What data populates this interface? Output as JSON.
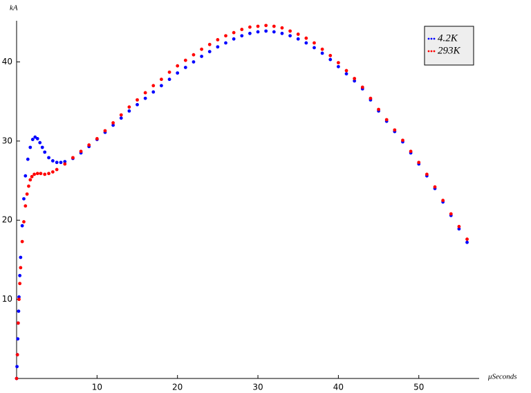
{
  "chart_data": {
    "type": "scatter",
    "y_label": "kA",
    "x_label": "μSeconds",
    "xlim": [
      0,
      57.5
    ],
    "ylim": [
      0,
      45.2
    ],
    "xticks": [
      10,
      20,
      30,
      40,
      50
    ],
    "yticks": [
      10,
      20,
      30,
      40
    ],
    "grid": false,
    "legend": "upper right",
    "series": [
      {
        "name": "4.2K",
        "color": "#0000ff",
        "x": [
          0,
          0.05,
          0.1,
          0.15,
          0.2,
          0.25,
          0.3,
          0.4,
          0.5,
          0.7,
          0.9,
          1.1,
          1.4,
          1.7,
          2.0,
          2.3,
          2.6,
          2.9,
          3.2,
          3.5,
          4,
          4.5,
          5,
          5.5,
          6,
          7,
          8,
          9,
          10,
          11,
          12,
          13,
          14,
          15,
          16,
          17,
          18,
          19,
          20,
          21,
          22,
          23,
          24,
          25,
          26,
          27,
          28,
          29,
          30,
          31,
          32,
          33,
          34,
          35,
          36,
          37,
          38,
          39,
          40,
          41,
          42,
          43,
          44,
          45,
          46,
          47,
          48,
          49,
          50,
          51,
          52,
          53,
          54,
          55,
          56
        ],
        "values": [
          0,
          1.5,
          3,
          5,
          7,
          8.5,
          10.3,
          13,
          15.3,
          19.3,
          22.7,
          25.6,
          27.7,
          29.2,
          30.2,
          30.5,
          30.3,
          29.8,
          29.2,
          28.6,
          27.9,
          27.5,
          27.3,
          27.3,
          27.4,
          27.8,
          28.5,
          29.3,
          30.2,
          31.1,
          32.0,
          32.9,
          33.8,
          34.6,
          35.4,
          36.2,
          37.0,
          37.8,
          38.6,
          39.3,
          40.0,
          40.7,
          41.3,
          41.9,
          42.4,
          42.9,
          43.3,
          43.6,
          43.8,
          43.9,
          43.8,
          43.6,
          43.3,
          42.9,
          42.4,
          41.8,
          41.1,
          40.3,
          39.4,
          38.5,
          37.6,
          36.6,
          35.2,
          33.8,
          32.5,
          31.2,
          29.9,
          28.5,
          27.1,
          25.6,
          24.0,
          22.3,
          20.6,
          18.9,
          17.2
        ]
      },
      {
        "name": "293K",
        "color": "#ff0000",
        "x": [
          0,
          0.1,
          0.2,
          0.3,
          0.4,
          0.5,
          0.7,
          0.9,
          1.1,
          1.3,
          1.5,
          1.7,
          1.9,
          2.2,
          2.6,
          3,
          3.5,
          4,
          4.5,
          5,
          6,
          7,
          8,
          9,
          10,
          11,
          12,
          13,
          14,
          15,
          16,
          17,
          18,
          19,
          20,
          21,
          22,
          23,
          24,
          25,
          26,
          27,
          28,
          29,
          30,
          31,
          32,
          33,
          34,
          35,
          36,
          37,
          38,
          39,
          40,
          41,
          42,
          43,
          44,
          45,
          46,
          47,
          48,
          49,
          50,
          51,
          52,
          53,
          54,
          55,
          56
        ],
        "values": [
          0,
          3,
          7,
          10,
          12,
          14,
          17.3,
          19.8,
          21.8,
          23.3,
          24.3,
          25.1,
          25.5,
          25.8,
          25.9,
          25.9,
          25.8,
          25.9,
          26.1,
          26.4,
          27.1,
          27.9,
          28.7,
          29.5,
          30.3,
          31.3,
          32.3,
          33.3,
          34.3,
          35.2,
          36.1,
          37.0,
          37.8,
          38.7,
          39.5,
          40.2,
          40.9,
          41.6,
          42.2,
          42.8,
          43.3,
          43.7,
          44.1,
          44.4,
          44.5,
          44.6,
          44.5,
          44.3,
          43.9,
          43.5,
          43.0,
          42.4,
          41.6,
          40.8,
          39.9,
          38.9,
          37.9,
          36.8,
          35.4,
          34.0,
          32.7,
          31.4,
          30.1,
          28.7,
          27.3,
          25.8,
          24.2,
          22.5,
          20.8,
          19.2,
          17.6
        ]
      }
    ]
  }
}
